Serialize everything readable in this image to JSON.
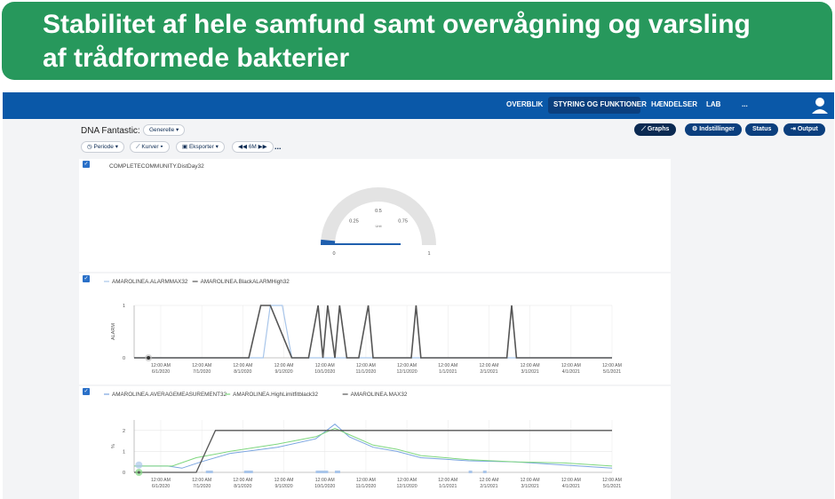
{
  "banner": {
    "line1": "Stabilitet af hele samfund samt overvågning og varsling",
    "line2": "af trådformede bakterier"
  },
  "nav": {
    "items": [
      "OVERBLIK",
      "STYRING OG FUNKTIONER",
      "HÆNDELSER",
      "LAB",
      "..."
    ],
    "active": "STYRING OG FUNKTIONER"
  },
  "header": {
    "title": "DNA Fantastic:",
    "dropdown": "Generelle"
  },
  "toolbar": {
    "periode": "Periode",
    "kurver": "Kurver",
    "eksporter": "Eksporter",
    "range": "6M",
    "more": "..."
  },
  "right_buttons": {
    "graphs": "Graphs",
    "settings": "Indstillinger",
    "status": "Status",
    "output": "Output"
  },
  "colors": {
    "nav": "#0a58a8",
    "banner": "#27985c",
    "dark_button": "#0b2a52"
  },
  "chart_data": [
    {
      "type": "gauge",
      "title": "COMPLETECOMMUNITY.DistDay32",
      "ticks": [
        "0",
        "0.25",
        "0.5",
        "0.75",
        "1"
      ],
      "unit": "Unit",
      "value": 0.03,
      "range": [
        0,
        1
      ]
    },
    {
      "type": "line",
      "series": [
        {
          "name": "AMAROLINEA.ALARMMAX32",
          "color": "#a9c6ea"
        },
        {
          "name": "AMAROLINEA.BlackALARMHigh32",
          "color": "#555555"
        }
      ],
      "ylabel": "ALARM",
      "yticks": [
        "0",
        "1"
      ],
      "ylim": [
        0,
        1
      ],
      "xticks": [
        [
          "12:00 AM",
          "6/1/2020"
        ],
        [
          "12:00 AM",
          "7/1/2020"
        ],
        [
          "12:00 AM",
          "8/1/2020"
        ],
        [
          "12:00 AM",
          "9/1/2020"
        ],
        [
          "12:00 AM",
          "10/1/2020"
        ],
        [
          "12:00 AM",
          "11/1/2020"
        ],
        [
          "12:00 AM",
          "12/1/2020"
        ],
        [
          "12:00 AM",
          "1/1/2021"
        ],
        [
          "12:00 AM",
          "2/1/2021"
        ],
        [
          "12:00 AM",
          "3/1/2021"
        ],
        [
          "12:00 AM",
          "4/1/2021"
        ],
        [
          "12:00 AM",
          "5/1/2021"
        ]
      ]
    },
    {
      "type": "line",
      "series": [
        {
          "name": "AMAROLINEA.AVERAGEMEASUREMENT32",
          "color": "#7aa5e0"
        },
        {
          "name": "AMAROLINEA.HighLimitfitblack32",
          "color": "#7fd77f"
        },
        {
          "name": "AMAROLINEA.MAX32",
          "color": "#555555"
        }
      ],
      "ylabel": "%",
      "yticks": [
        "0",
        "1",
        "2"
      ],
      "ylim": [
        0,
        2.5
      ],
      "xticks": [
        [
          "12:00 AM",
          "6/1/2020"
        ],
        [
          "12:00 AM",
          "7/1/2020"
        ],
        [
          "12:00 AM",
          "8/1/2020"
        ],
        [
          "12:00 AM",
          "9/1/2020"
        ],
        [
          "12:00 AM",
          "10/1/2020"
        ],
        [
          "12:00 AM",
          "11/1/2020"
        ],
        [
          "12:00 AM",
          "12/1/2020"
        ],
        [
          "12:00 AM",
          "1/1/2021"
        ],
        [
          "12:00 AM",
          "2/1/2021"
        ],
        [
          "12:00 AM",
          "3/1/2021"
        ],
        [
          "12:00 AM",
          "4/1/2021"
        ],
        [
          "12:00 AM",
          "5/1/2021"
        ]
      ]
    }
  ]
}
